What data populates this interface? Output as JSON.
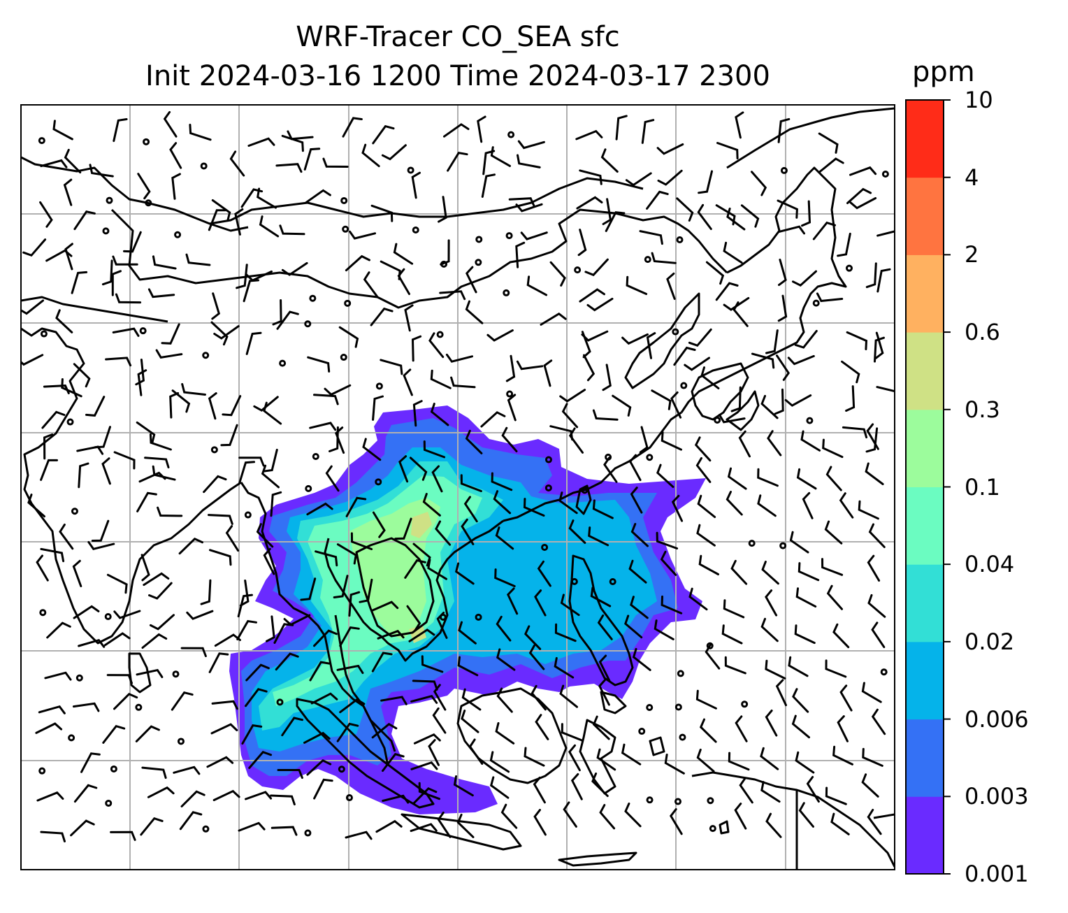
{
  "title": {
    "line1": "WRF-Tracer CO_SEA sfc",
    "line2": "Init 2024-03-16 1200 Time 2024-03-17 2300"
  },
  "colorbar": {
    "unit": "ppm",
    "levels": [
      "0.001",
      "0.003",
      "0.006",
      "0.02",
      "0.04",
      "0.1",
      "0.3",
      "0.6",
      "2",
      "4",
      "10"
    ],
    "colors": [
      "#6a2bff",
      "#3471f5",
      "#05b3ea",
      "#32dfd6",
      "#6bfcc1",
      "#9cfc9c",
      "#cfe185",
      "#ffb160",
      "#ff7440",
      "#ff2c18"
    ]
  },
  "map": {
    "gridlines": true,
    "grid_color": "#b0b0b0",
    "coastline_color": "#000000",
    "wind_barbs": true
  }
}
